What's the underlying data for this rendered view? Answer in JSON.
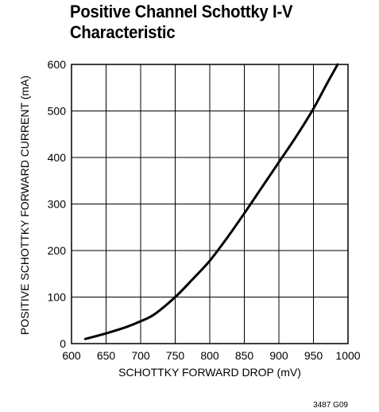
{
  "chart_data": {
    "type": "line",
    "title_lines": [
      "Positive Channel Schottky I-V",
      "Characteristic"
    ],
    "xlabel": "SCHOTTKY FORWARD DROP (mV)",
    "ylabel": "POSITIVE SCHOTTKY FORWARD CURRENT (mA)",
    "xlim": [
      600,
      1000
    ],
    "ylim": [
      0,
      600
    ],
    "x_ticks": [
      600,
      650,
      700,
      750,
      800,
      850,
      900,
      950,
      1000
    ],
    "y_ticks": [
      0,
      100,
      200,
      300,
      400,
      500,
      600
    ],
    "grid": true,
    "series": [
      {
        "x": [
          620,
          650,
          680,
          700,
          720,
          750,
          775,
          800,
          825,
          850,
          875,
          900,
          925,
          950,
          970,
          985
        ],
        "y": [
          10,
          22,
          36,
          48,
          63,
          100,
          138,
          178,
          227,
          280,
          335,
          390,
          445,
          505,
          560,
          600
        ]
      }
    ],
    "figure_code": "3487 G09"
  },
  "style": {
    "line_color": "#000000",
    "grid_color": "#000000",
    "background": "#ffffff"
  }
}
